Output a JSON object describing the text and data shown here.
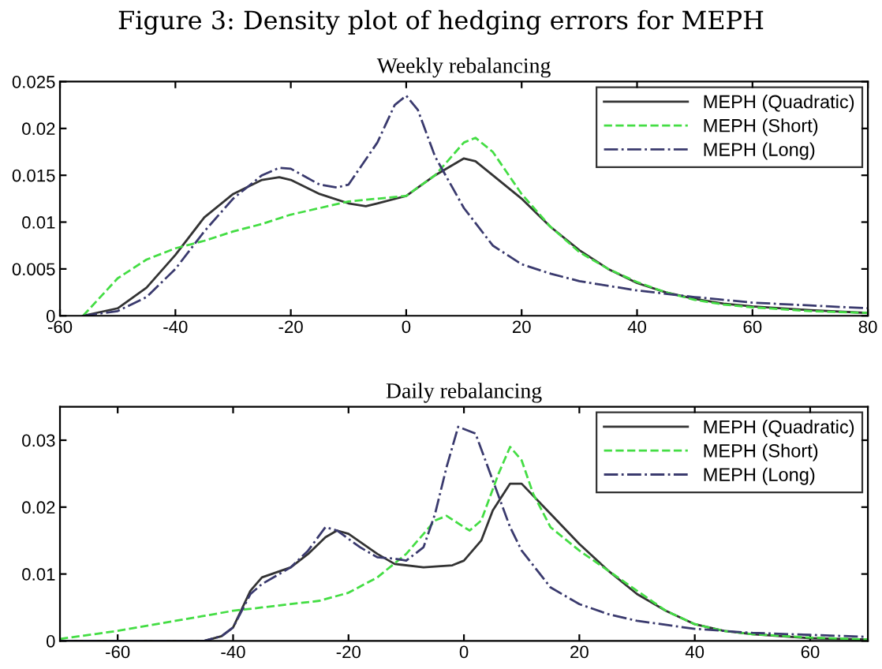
{
  "chart_data": [
    {
      "type": "line",
      "title": "Weekly rebalancing",
      "annotations": [
        "Figure 3: Density plot of hedging errors for MEPH"
      ],
      "xlim": [
        -60,
        80
      ],
      "xticks": [
        -60,
        -40,
        -20,
        0,
        20,
        40,
        60,
        80
      ],
      "ylim": [
        0,
        0.025
      ],
      "yticks": [
        0,
        0.005,
        0.01,
        0.015,
        0.02,
        0.025
      ],
      "grid": false,
      "legend": "top right",
      "series": [
        {
          "name": "MEPH (Quadratic)",
          "color": "#333333",
          "line_style": "solid",
          "x": [
            -56,
            -50,
            -45,
            -40,
            -35,
            -30,
            -25,
            -22,
            -20,
            -15,
            -10,
            -7,
            -5,
            0,
            5,
            10,
            12,
            15,
            20,
            25,
            30,
            35,
            40,
            45,
            50,
            55,
            60,
            70,
            80
          ],
          "values": [
            0,
            0.0008,
            0.003,
            0.0065,
            0.0105,
            0.013,
            0.0145,
            0.0148,
            0.0145,
            0.013,
            0.012,
            0.0117,
            0.012,
            0.0128,
            0.015,
            0.0168,
            0.0165,
            0.015,
            0.0125,
            0.0095,
            0.007,
            0.005,
            0.0035,
            0.0025,
            0.0018,
            0.0013,
            0.001,
            0.0006,
            0.0003
          ]
        },
        {
          "name": "MEPH (Short)",
          "color": "#44dd44",
          "line_style": "dashed",
          "x": [
            -56,
            -50,
            -45,
            -40,
            -35,
            -30,
            -25,
            -20,
            -15,
            -10,
            -5,
            0,
            5,
            10,
            12,
            15,
            20,
            25,
            30,
            35,
            40,
            45,
            50,
            55,
            60,
            70,
            80
          ],
          "values": [
            0,
            0.004,
            0.006,
            0.0072,
            0.008,
            0.009,
            0.0098,
            0.0108,
            0.0115,
            0.0122,
            0.0125,
            0.0128,
            0.015,
            0.0185,
            0.019,
            0.0175,
            0.013,
            0.0095,
            0.0068,
            0.005,
            0.0036,
            0.0025,
            0.0017,
            0.0012,
            0.0009,
            0.0005,
            0.0003
          ]
        },
        {
          "name": "MEPH (Long)",
          "color": "#3a3a6e",
          "line_style": "dashdot",
          "x": [
            -56,
            -50,
            -45,
            -40,
            -35,
            -30,
            -25,
            -22,
            -20,
            -15,
            -12,
            -10,
            -5,
            -2,
            0,
            2,
            5,
            10,
            15,
            20,
            25,
            30,
            40,
            50,
            60,
            70,
            80
          ],
          "values": [
            0,
            0.0005,
            0.002,
            0.005,
            0.009,
            0.0125,
            0.015,
            0.0158,
            0.0157,
            0.014,
            0.0137,
            0.014,
            0.0185,
            0.0225,
            0.0235,
            0.022,
            0.017,
            0.0115,
            0.0075,
            0.0055,
            0.0045,
            0.0037,
            0.0027,
            0.002,
            0.0014,
            0.0011,
            0.0008
          ]
        }
      ]
    },
    {
      "type": "line",
      "title": "Daily rebalancing",
      "xlim": [
        -70,
        70
      ],
      "xticks": [
        -60,
        -40,
        -20,
        0,
        20,
        40,
        60
      ],
      "ylim": [
        0,
        0.035
      ],
      "yticks": [
        0,
        0.01,
        0.02,
        0.03
      ],
      "grid": false,
      "legend": "top right",
      "series": [
        {
          "name": "MEPH (Quadratic)",
          "color": "#333333",
          "line_style": "solid",
          "x": [
            -70,
            -45,
            -42,
            -40,
            -37,
            -35,
            -30,
            -27,
            -24,
            -22,
            -20,
            -15,
            -12,
            -7,
            -2,
            0,
            3,
            5,
            8,
            10,
            15,
            20,
            25,
            30,
            35,
            40,
            45,
            50,
            60,
            70
          ],
          "values": [
            0,
            0,
            0.0007,
            0.002,
            0.0075,
            0.0095,
            0.011,
            0.013,
            0.0155,
            0.0165,
            0.016,
            0.013,
            0.0115,
            0.011,
            0.0113,
            0.012,
            0.015,
            0.0195,
            0.0235,
            0.0235,
            0.019,
            0.0145,
            0.0105,
            0.007,
            0.0045,
            0.0025,
            0.0015,
            0.001,
            0.0004,
            0.0002
          ]
        },
        {
          "name": "MEPH (Short)",
          "color": "#44dd44",
          "line_style": "dashed",
          "x": [
            -70,
            -60,
            -50,
            -40,
            -35,
            -30,
            -25,
            -20,
            -15,
            -10,
            -5,
            -3,
            0,
            1,
            3,
            6,
            8,
            10,
            12,
            15,
            20,
            25,
            30,
            35,
            40,
            45,
            50,
            60,
            70
          ],
          "values": [
            0.0003,
            0.0015,
            0.003,
            0.0045,
            0.005,
            0.0055,
            0.006,
            0.0072,
            0.0095,
            0.013,
            0.018,
            0.0187,
            0.017,
            0.0165,
            0.018,
            0.025,
            0.029,
            0.027,
            0.022,
            0.017,
            0.0135,
            0.0105,
            0.0075,
            0.0045,
            0.0025,
            0.0015,
            0.001,
            0.0005,
            0.0002
          ]
        },
        {
          "name": "MEPH (Long)",
          "color": "#3a3a6e",
          "line_style": "dashdot",
          "x": [
            -70,
            -45,
            -42,
            -40,
            -37,
            -35,
            -30,
            -27,
            -24,
            -22,
            -18,
            -15,
            -12,
            -10,
            -7,
            -5,
            -3,
            -1,
            2,
            5,
            8,
            10,
            15,
            20,
            25,
            30,
            40,
            50,
            60,
            70
          ],
          "values": [
            0,
            0,
            0.0007,
            0.002,
            0.007,
            0.0085,
            0.011,
            0.0135,
            0.017,
            0.0165,
            0.014,
            0.0125,
            0.0123,
            0.012,
            0.014,
            0.019,
            0.026,
            0.032,
            0.031,
            0.024,
            0.017,
            0.0135,
            0.008,
            0.0055,
            0.004,
            0.003,
            0.0018,
            0.0012,
            0.0009,
            0.0006
          ]
        }
      ]
    }
  ]
}
